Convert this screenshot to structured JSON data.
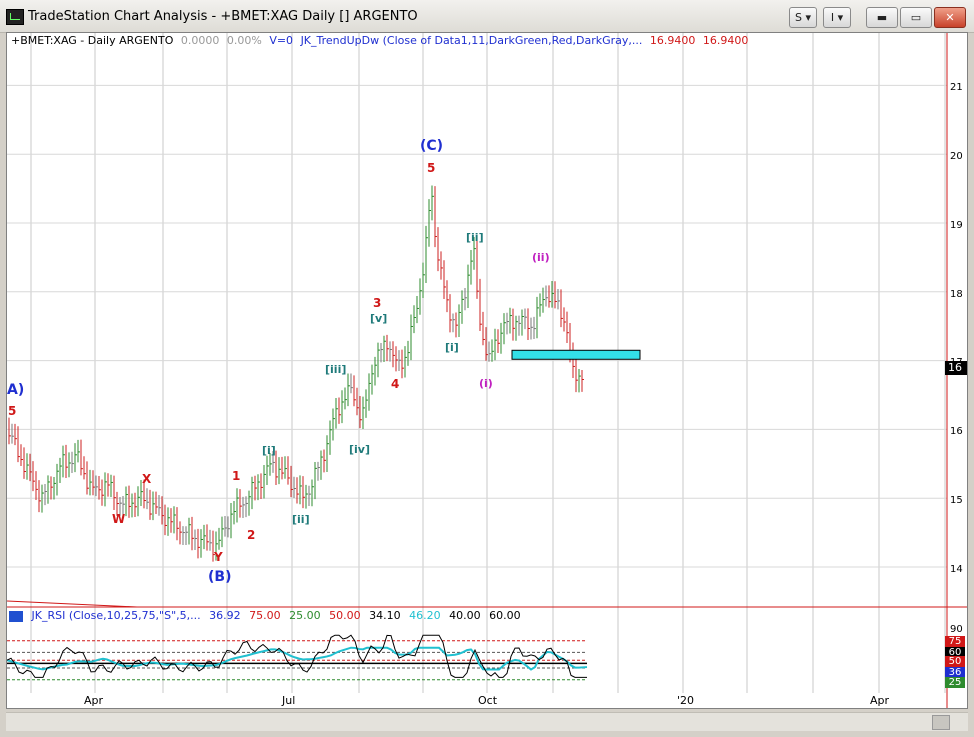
{
  "window": {
    "title": "TradeStation Chart Analysis - +BMET:XAG Daily [] ARGENTO",
    "buttons": {
      "s_label": "S",
      "i_label": "I"
    }
  },
  "header": {
    "symbol": "+BMET:XAG - Daily  ARGENTO",
    "change": "0.0000",
    "change_pct": "0.00%",
    "volume": "V=0",
    "indicator": "JK_TrendUpDw (Close of Data1,11,DarkGreen,Red,DarkGray,...",
    "value1": "16.9400",
    "value2": "16.9400"
  },
  "price_axis": [
    "21",
    "20",
    "19",
    "18",
    "17",
    "16",
    "15",
    "14"
  ],
  "last_price_label": "16",
  "rsi_header": {
    "name": "JK_RSI (Close,10,25,75,\"S\",5,...",
    "v1": "36.92",
    "v2": "75.00",
    "v3": "25.00",
    "v4": "50.00",
    "v5": "34.10",
    "v6": "46.20",
    "v7": "40.00",
    "v8": "60.00"
  },
  "rsi_axis": {
    "top": "90",
    "tags": [
      "75",
      "60",
      "50",
      "36",
      "25"
    ]
  },
  "time_axis": [
    "Apr",
    "Jul",
    "Oct",
    "'20",
    "Apr"
  ],
  "wave_labels": {
    "a_left": "A)",
    "five_left": "5",
    "w": "W",
    "x": "X",
    "y": "Y",
    "b": "(B)",
    "one": "1",
    "two": "2",
    "i1": "[i]",
    "ii1": "[ii]",
    "iii1": "[iii]",
    "iv1": "[iv]",
    "v1": "[v]",
    "three": "3",
    "four": "4",
    "c": "(C)",
    "five": "5",
    "i2": "[i]",
    "ii2": "[ii]",
    "paren_i": "(i)",
    "paren_ii": "(ii)"
  },
  "colors": {
    "up_bar": "#2e8b2e",
    "down_bar": "#cc2020",
    "neutral_bar": "#777777",
    "zone": "#33e0e8",
    "rsi_line": "#000000",
    "rsi_signal": "#20c0d0"
  }
}
